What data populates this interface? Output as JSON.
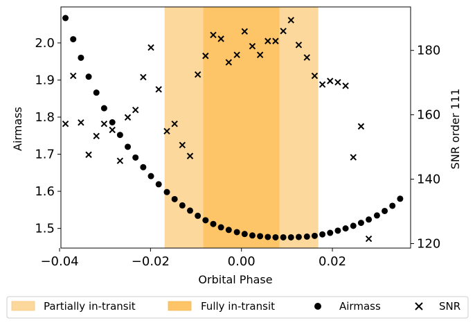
{
  "chart_data": {
    "type": "scatter",
    "xlabel": "Orbital Phase",
    "ylabel_left": "Airmass",
    "ylabel_right": "SNR order 111",
    "xlim": [
      -0.0397,
      0.0372
    ],
    "ylim_left": [
      1.447,
      2.097
    ],
    "ylim_right": [
      118.6,
      193.5
    ],
    "xticks": [
      -0.04,
      -0.02,
      0.0,
      0.02
    ],
    "xtick_labels": [
      "−0.04",
      "−0.02",
      "0.00",
      "0.02"
    ],
    "yticks_left": [
      1.5,
      1.6,
      1.7,
      1.8,
      1.9,
      2.0
    ],
    "ytick_labels_left": [
      "1.5",
      "1.6",
      "1.7",
      "1.8",
      "1.9",
      "2.0"
    ],
    "yticks_right": [
      120,
      140,
      160,
      180
    ],
    "ytick_labels_right": [
      "120",
      "140",
      "160",
      "180"
    ],
    "regions": [
      {
        "name": "Partially in-transit",
        "x0": -0.0169,
        "x1": -0.0084,
        "color": "#fdd89c"
      },
      {
        "name": "Fully in-transit",
        "x0": -0.0084,
        "x1": 0.0084,
        "color": "#fec568"
      },
      {
        "name": "Partially in-transit",
        "x0": 0.0084,
        "x1": 0.0169,
        "color": "#fdd89c"
      }
    ],
    "series": [
      {
        "name": "Airmass",
        "axis": "left",
        "marker": "circle",
        "color": "#000000",
        "points": [
          [
            -0.0387,
            2.067
          ],
          [
            -0.037,
            2.01
          ],
          [
            -0.0353,
            1.96
          ],
          [
            -0.0336,
            1.909
          ],
          [
            -0.0319,
            1.866
          ],
          [
            -0.0302,
            1.824
          ],
          [
            -0.0284,
            1.786
          ],
          [
            -0.0267,
            1.752
          ],
          [
            -0.025,
            1.72
          ],
          [
            -0.0233,
            1.691
          ],
          [
            -0.0216,
            1.665
          ],
          [
            -0.0199,
            1.641
          ],
          [
            -0.0182,
            1.619
          ],
          [
            -0.0164,
            1.598
          ],
          [
            -0.0147,
            1.579
          ],
          [
            -0.013,
            1.562
          ],
          [
            -0.0113,
            1.548
          ],
          [
            -0.0096,
            1.534
          ],
          [
            -0.0079,
            1.522
          ],
          [
            -0.0062,
            1.512
          ],
          [
            -0.0045,
            1.503
          ],
          [
            -0.0028,
            1.496
          ],
          [
            -0.001,
            1.49
          ],
          [
            0.0007,
            1.485
          ],
          [
            0.0024,
            1.481
          ],
          [
            0.0041,
            1.479
          ],
          [
            0.0058,
            1.477
          ],
          [
            0.0075,
            1.476
          ],
          [
            0.0092,
            1.476
          ],
          [
            0.0109,
            1.476
          ],
          [
            0.0126,
            1.477
          ],
          [
            0.0144,
            1.478
          ],
          [
            0.0161,
            1.48
          ],
          [
            0.0178,
            1.484
          ],
          [
            0.0195,
            1.488
          ],
          [
            0.0212,
            1.494
          ],
          [
            0.0229,
            1.5
          ],
          [
            0.0246,
            1.507
          ],
          [
            0.0263,
            1.515
          ],
          [
            0.028,
            1.524
          ],
          [
            0.0298,
            1.535
          ],
          [
            0.0315,
            1.547
          ],
          [
            0.0332,
            1.561
          ],
          [
            0.0349,
            1.58
          ]
        ]
      },
      {
        "name": "SNR",
        "axis": "right",
        "marker": "x",
        "color": "#000000",
        "points": [
          [
            -0.0387,
            157.2
          ],
          [
            -0.037,
            172.1
          ],
          [
            -0.0353,
            157.6
          ],
          [
            -0.0336,
            147.6
          ],
          [
            -0.0319,
            153.4
          ],
          [
            -0.0302,
            157.2
          ],
          [
            -0.0284,
            155.3
          ],
          [
            -0.0267,
            145.7
          ],
          [
            -0.025,
            159.2
          ],
          [
            -0.0233,
            161.5
          ],
          [
            -0.0216,
            171.7
          ],
          [
            -0.0199,
            180.9
          ],
          [
            -0.0182,
            167.9
          ],
          [
            -0.0164,
            154.9
          ],
          [
            -0.0147,
            157.2
          ],
          [
            -0.013,
            150.6
          ],
          [
            -0.0113,
            147.2
          ],
          [
            -0.0096,
            172.5
          ],
          [
            -0.0079,
            178.3
          ],
          [
            -0.0062,
            184.8
          ],
          [
            -0.0045,
            183.6
          ],
          [
            -0.0028,
            176.3
          ],
          [
            -0.001,
            178.6
          ],
          [
            0.0007,
            185.9
          ],
          [
            0.0024,
            181.3
          ],
          [
            0.0041,
            178.6
          ],
          [
            0.0058,
            182.9
          ],
          [
            0.0075,
            182.9
          ],
          [
            0.0092,
            186.0
          ],
          [
            0.0109,
            189.4
          ],
          [
            0.0126,
            181.7
          ],
          [
            0.0144,
            177.8
          ],
          [
            0.0161,
            172.1
          ],
          [
            0.0178,
            169.4
          ],
          [
            0.0195,
            170.5
          ],
          [
            0.0212,
            170.1
          ],
          [
            0.0229,
            169.0
          ],
          [
            0.0246,
            146.8
          ],
          [
            0.0263,
            156.4
          ],
          [
            0.028,
            121.5
          ]
        ]
      }
    ],
    "legend": {
      "position": "bottom",
      "entries": [
        {
          "label": "Partially in-transit",
          "kind": "patch",
          "color": "#fdd89c"
        },
        {
          "label": "Fully in-transit",
          "kind": "patch",
          "color": "#fec568"
        },
        {
          "label": "Airmass",
          "kind": "circle",
          "color": "#000000"
        },
        {
          "label": "SNR",
          "kind": "x",
          "color": "#000000"
        }
      ]
    }
  }
}
